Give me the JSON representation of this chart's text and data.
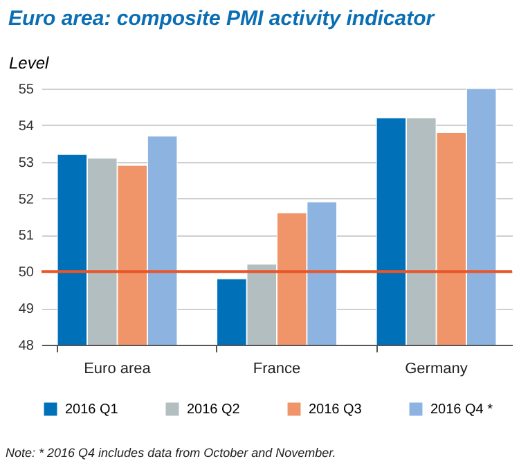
{
  "chart_data": {
    "type": "bar",
    "title": "Euro area: composite PMI activity indicator",
    "ylabel": "Level",
    "categories": [
      "Euro area",
      "France",
      "Germany"
    ],
    "series": [
      {
        "name": "2016 Q1",
        "color": "#0070b8",
        "values": [
          53.2,
          49.8,
          54.2
        ]
      },
      {
        "name": "2016 Q2",
        "color": "#b2bec0",
        "values": [
          53.1,
          50.2,
          54.2
        ]
      },
      {
        "name": "2016 Q3",
        "color": "#f0956a",
        "values": [
          52.9,
          51.6,
          53.8
        ]
      },
      {
        "name": "2016 Q4 *",
        "color": "#8db3e0",
        "values": [
          53.7,
          51.9,
          55.0
        ]
      }
    ],
    "ylim": [
      48,
      55
    ],
    "yticks": [
      48,
      49,
      50,
      51,
      52,
      53,
      54,
      55
    ],
    "grid": "y",
    "legend": "bottom",
    "ref_lines": [
      {
        "axis": "y",
        "value": 50,
        "color": "#e8562a"
      }
    ],
    "annotations": [
      "Note: * 2016 Q4 includes data from October and November."
    ]
  }
}
